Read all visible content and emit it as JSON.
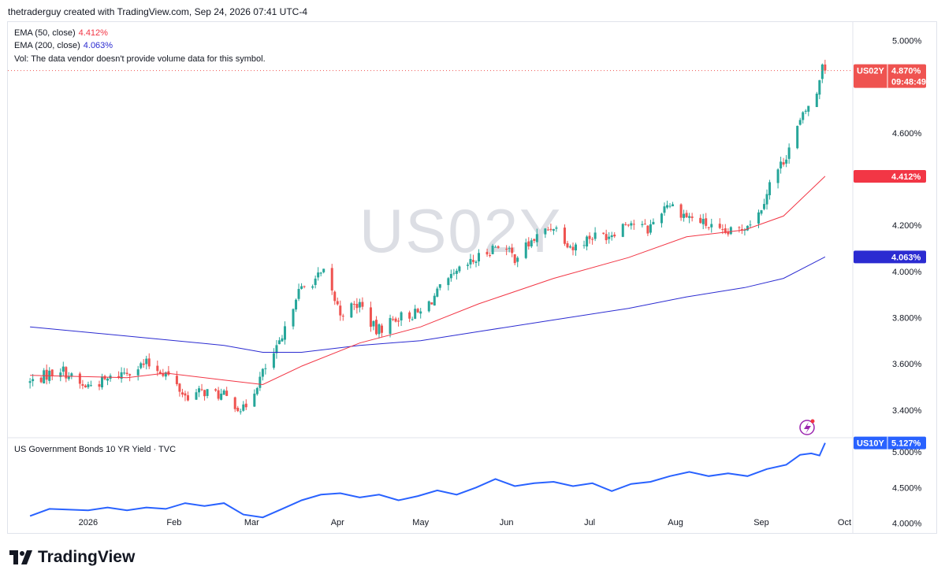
{
  "header": {
    "attribution": "thetraderguy created with TradingView.com, Sep 24, 2026 07:41 UTC-4"
  },
  "watermark": "US02Y",
  "legend": {
    "ema50_label": "EMA (50, close)",
    "ema50_value": "4.412%",
    "ema200_label": "EMA (200, close)",
    "ema200_value": "4.063%",
    "vol_text": "Vol: The data vendor doesn't provide volume data for this symbol.",
    "lower_title": "US Government Bonds 10 YR Yield · TVC"
  },
  "tags": {
    "price_symbol": "US02Y",
    "price_value": "4.870%",
    "countdown": "09:48:49",
    "ema50": "4.412%",
    "ema200": "4.063%",
    "lower_symbol": "US10Y",
    "lower_value": "5.127%"
  },
  "footer": {
    "brand": "TradingView"
  },
  "colors": {
    "up": "#26a69a",
    "down": "#ef5350",
    "ema50": "#f23645",
    "ema200": "#2b2bd1",
    "line10y": "#2962ff",
    "text": "#131722",
    "grid": "#e0e3eb"
  },
  "chart_data": [
    {
      "type": "candlestick",
      "symbol": "US02Y",
      "y_axis_ticks": [
        "3.400%",
        "3.600%",
        "3.800%",
        "4.000%",
        "4.200%",
        "4.600%",
        "5.000%"
      ],
      "ylim": [
        3.28,
        5.08
      ],
      "x_axis_ticks": [
        "2026",
        "Feb",
        "Mar",
        "Apr",
        "May",
        "Jun",
        "Jul",
        "Aug",
        "Sep",
        "Oct"
      ],
      "close_anchors": [
        [
          "2025-12-11",
          3.52
        ],
        [
          "2025-12-22",
          3.58
        ],
        [
          "2025-12-30",
          3.5
        ],
        [
          "2026-01-08",
          3.53
        ],
        [
          "2026-01-15",
          3.57
        ],
        [
          "2026-01-22",
          3.6
        ],
        [
          "2026-01-29",
          3.56
        ],
        [
          "2026-02-05",
          3.46
        ],
        [
          "2026-02-12",
          3.48
        ],
        [
          "2026-02-19",
          3.46
        ],
        [
          "2026-02-26",
          3.4
        ],
        [
          "2026-03-05",
          3.56
        ],
        [
          "2026-03-12",
          3.7
        ],
        [
          "2026-03-17",
          3.9
        ],
        [
          "2026-03-23",
          3.96
        ],
        [
          "2026-03-27",
          3.99
        ],
        [
          "2026-04-02",
          3.82
        ],
        [
          "2026-04-09",
          3.86
        ],
        [
          "2026-04-15",
          3.74
        ],
        [
          "2026-04-22",
          3.8
        ],
        [
          "2026-05-01",
          3.82
        ],
        [
          "2026-05-08",
          3.92
        ],
        [
          "2026-05-15",
          4.0
        ],
        [
          "2026-05-22",
          4.06
        ],
        [
          "2026-05-29",
          4.12
        ],
        [
          "2026-06-04",
          4.06
        ],
        [
          "2026-06-11",
          4.14
        ],
        [
          "2026-06-18",
          4.2
        ],
        [
          "2026-06-25",
          4.1
        ],
        [
          "2026-07-01",
          4.15
        ],
        [
          "2026-07-08",
          4.16
        ],
        [
          "2026-07-15",
          4.22
        ],
        [
          "2026-07-22",
          4.18
        ],
        [
          "2026-07-29",
          4.3
        ],
        [
          "2026-08-05",
          4.24
        ],
        [
          "2026-08-11",
          4.21
        ],
        [
          "2026-08-18",
          4.16
        ],
        [
          "2026-08-24",
          4.18
        ],
        [
          "2026-08-31",
          4.25
        ],
        [
          "2026-09-04",
          4.38
        ],
        [
          "2026-09-09",
          4.48
        ],
        [
          "2026-09-14",
          4.62
        ],
        [
          "2026-09-18",
          4.72
        ],
        [
          "2026-09-21",
          4.76
        ],
        [
          "2026-09-23",
          4.91
        ],
        [
          "2026-09-24",
          4.87
        ]
      ],
      "last_price": 4.87,
      "ema_50": {
        "values": [
          [
            "2025-12-11",
            3.55
          ],
          [
            "2026-01-15",
            3.54
          ],
          [
            "2026-01-29",
            3.56
          ],
          [
            "2026-02-19",
            3.53
          ],
          [
            "2026-03-05",
            3.51
          ],
          [
            "2026-03-19",
            3.59
          ],
          [
            "2026-04-09",
            3.69
          ],
          [
            "2026-05-01",
            3.76
          ],
          [
            "2026-05-22",
            3.86
          ],
          [
            "2026-06-18",
            3.97
          ],
          [
            "2026-07-15",
            4.06
          ],
          [
            "2026-08-05",
            4.15
          ],
          [
            "2026-08-26",
            4.18
          ],
          [
            "2026-09-09",
            4.24
          ],
          [
            "2026-09-24",
            4.412
          ]
        ],
        "last": 4.412
      },
      "ema_200": {
        "values": [
          [
            "2025-12-11",
            3.76
          ],
          [
            "2026-01-15",
            3.72
          ],
          [
            "2026-02-19",
            3.68
          ],
          [
            "2026-03-05",
            3.65
          ],
          [
            "2026-03-19",
            3.65
          ],
          [
            "2026-04-09",
            3.68
          ],
          [
            "2026-05-01",
            3.7
          ],
          [
            "2026-05-22",
            3.74
          ],
          [
            "2026-06-18",
            3.79
          ],
          [
            "2026-07-15",
            3.84
          ],
          [
            "2026-08-05",
            3.89
          ],
          [
            "2026-08-26",
            3.93
          ],
          [
            "2026-09-09",
            3.97
          ],
          [
            "2026-09-24",
            4.063
          ]
        ],
        "last": 4.063
      }
    },
    {
      "type": "line",
      "name": "US Government Bonds 10 YR Yield · TVC",
      "y_axis_ticks": [
        "4.000%",
        "4.500%",
        "5.000%"
      ],
      "ylim": [
        3.85,
        5.2
      ],
      "points": [
        [
          "2025-12-11",
          4.1
        ],
        [
          "2025-12-18",
          4.2
        ],
        [
          "2026-01-01",
          4.18
        ],
        [
          "2026-01-08",
          4.22
        ],
        [
          "2026-01-15",
          4.18
        ],
        [
          "2026-01-22",
          4.22
        ],
        [
          "2026-01-29",
          4.2
        ],
        [
          "2026-02-05",
          4.28
        ],
        [
          "2026-02-12",
          4.24
        ],
        [
          "2026-02-19",
          4.28
        ],
        [
          "2026-02-26",
          4.12
        ],
        [
          "2026-03-05",
          4.08
        ],
        [
          "2026-03-12",
          4.2
        ],
        [
          "2026-03-19",
          4.32
        ],
        [
          "2026-03-26",
          4.4
        ],
        [
          "2026-04-02",
          4.42
        ],
        [
          "2026-04-09",
          4.36
        ],
        [
          "2026-04-16",
          4.4
        ],
        [
          "2026-04-23",
          4.32
        ],
        [
          "2026-04-30",
          4.38
        ],
        [
          "2026-05-07",
          4.46
        ],
        [
          "2026-05-14",
          4.4
        ],
        [
          "2026-05-21",
          4.5
        ],
        [
          "2026-05-28",
          4.62
        ],
        [
          "2026-06-04",
          4.52
        ],
        [
          "2026-06-11",
          4.56
        ],
        [
          "2026-06-18",
          4.58
        ],
        [
          "2026-06-25",
          4.52
        ],
        [
          "2026-07-02",
          4.56
        ],
        [
          "2026-07-09",
          4.45
        ],
        [
          "2026-07-16",
          4.55
        ],
        [
          "2026-07-23",
          4.58
        ],
        [
          "2026-07-30",
          4.66
        ],
        [
          "2026-08-06",
          4.72
        ],
        [
          "2026-08-13",
          4.66
        ],
        [
          "2026-08-20",
          4.7
        ],
        [
          "2026-08-27",
          4.66
        ],
        [
          "2026-09-03",
          4.76
        ],
        [
          "2026-09-10",
          4.82
        ],
        [
          "2026-09-15",
          4.96
        ],
        [
          "2026-09-19",
          4.98
        ],
        [
          "2026-09-22",
          4.95
        ],
        [
          "2026-09-24",
          5.127
        ]
      ],
      "last": 5.127
    }
  ]
}
